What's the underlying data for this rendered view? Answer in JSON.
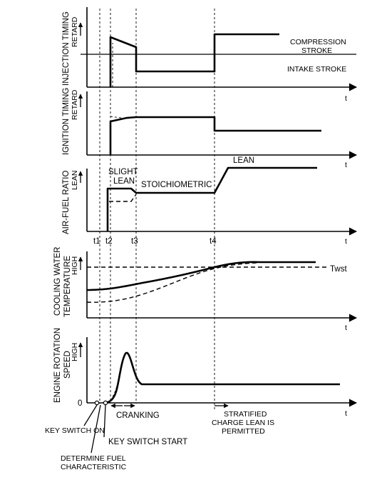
{
  "panel_1": {
    "ylabel": "INJECTION TIMING",
    "arrow_label": "RETARD",
    "axis_t": "t",
    "annotation_top": "COMPRESSION",
    "annotation_top_2": "STROKE",
    "annotation_bottom": "INTAKE STROKE"
  },
  "panel_2": {
    "ylabel": "IGNITION TIMING",
    "arrow_label": "RETARD",
    "axis_t": "t"
  },
  "panel_3": {
    "ylabel": "AIR-FUEL RATIO",
    "arrow_label": "LEAN",
    "axis_t": "t",
    "label_slight_1": "SLIGHT",
    "label_slight_2": "LEAN",
    "label_stoich": "STOICHIOMETRIC",
    "label_lean": "LEAN"
  },
  "time_marks": {
    "t1": "t1",
    "t2": "t2",
    "t3": "t3",
    "t4": "t4"
  },
  "panel_4": {
    "ylabel_1": "COOLING WATER",
    "ylabel_2": "TEMPERATURE",
    "arrow_label": "HIGH",
    "axis_t": "t",
    "threshold": "Twst"
  },
  "panel_5": {
    "ylabel_1": "ENGINE ROTATION",
    "ylabel_2": "SPEED",
    "arrow_label": "HIGH",
    "origin": "0",
    "axis_t": "t",
    "cranking": "CRANKING",
    "stratified_1": "STRATIFIED",
    "stratified_2": "CHARGE LEAN IS",
    "stratified_3": "PERMITTED"
  },
  "callouts": {
    "key_on": "KEY SWITCH ON",
    "key_start": "KEY SWITCH START",
    "determine_1": "DETERMINE FUEL",
    "determine_2": "CHARACTERISTIC"
  }
}
